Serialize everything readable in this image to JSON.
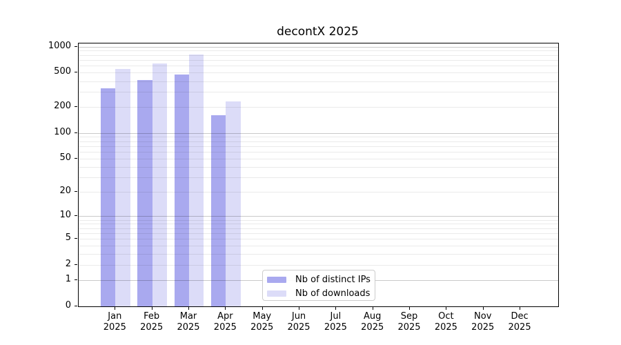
{
  "title": "decontX 2025",
  "colors": {
    "ips_bar": "#a9a9ef",
    "downloads_bar": "#dcdcf8",
    "grid_major": "#c9c9c9",
    "grid_minor": "#eaeaea",
    "axis": "#000000",
    "legend_border": "#cccccc"
  },
  "y_axis": {
    "ticks": [
      0,
      1,
      2,
      5,
      10,
      20,
      50,
      100,
      200,
      500,
      1000
    ]
  },
  "x_axis": {
    "months": [
      "Jan",
      "Feb",
      "Mar",
      "Apr",
      "May",
      "Jun",
      "Jul",
      "Aug",
      "Sep",
      "Oct",
      "Nov",
      "Dec"
    ],
    "year": "2025"
  },
  "legend": {
    "items": [
      {
        "label": "Nb of distinct IPs",
        "color_key": "ips_bar"
      },
      {
        "label": "Nb of downloads",
        "color_key": "downloads_bar"
      }
    ]
  },
  "chart_data": {
    "type": "bar",
    "title": "decontX 2025",
    "categories": [
      "Jan 2025",
      "Feb 2025",
      "Mar 2025",
      "Apr 2025",
      "May 2025",
      "Jun 2025",
      "Jul 2025",
      "Aug 2025",
      "Sep 2025",
      "Oct 2025",
      "Nov 2025",
      "Dec 2025"
    ],
    "series": [
      {
        "name": "Nb of distinct IPs",
        "color": "#a9a9ef",
        "values": [
          330,
          410,
          475,
          162,
          null,
          null,
          null,
          null,
          null,
          null,
          null,
          null
        ]
      },
      {
        "name": "Nb of downloads",
        "color": "#dcdcf8",
        "values": [
          557,
          645,
          810,
          233,
          null,
          null,
          null,
          null,
          null,
          null,
          null,
          null
        ]
      }
    ],
    "xlabel": "",
    "ylabel": "",
    "y_scale": "log1p",
    "y_ticks": [
      0,
      1,
      2,
      5,
      10,
      20,
      50,
      100,
      200,
      500,
      1000
    ],
    "ylim": [
      0,
      1090
    ],
    "grid": "horizontal major+minor log gridlines",
    "legend_position": "lower center inside plot"
  }
}
